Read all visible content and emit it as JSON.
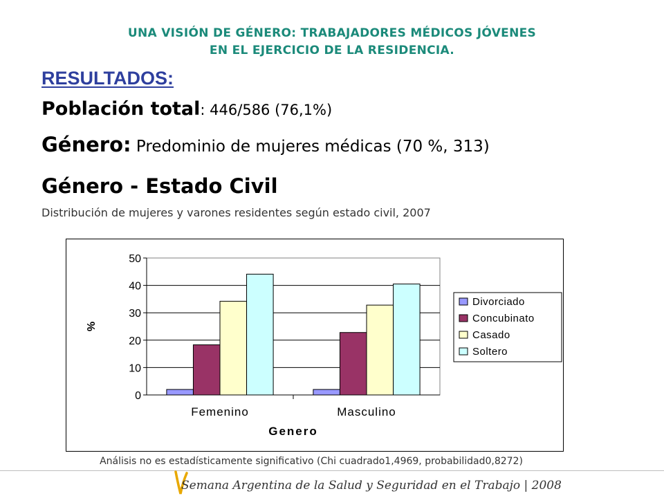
{
  "header": {
    "title_line1": "UNA VISIÓN DE GÉNERO: TRABAJADORES MÉDICOS JÓVENES",
    "title_line2": "EN EL EJERCICIO DE LA RESIDENCIA."
  },
  "results": {
    "heading": "RESULTADOS:",
    "population_label": "Población total",
    "population_value": ": 446/586 (76,1%)",
    "gender_label": "Género:",
    "gender_value": " Predominio de mujeres médicas (70 %, 313)",
    "section_title": "Género - Estado Civil",
    "chart_subtitle": "Distribución de mujeres y varones residentes según estado civil, 2007"
  },
  "chart_data": {
    "type": "bar",
    "categories": [
      "Femenino",
      "Masculino"
    ],
    "series": [
      {
        "name": "Divorciado",
        "color": "#9999ff",
        "values": [
          2,
          2
        ]
      },
      {
        "name": "Concubinato",
        "color": "#993366",
        "values": [
          18.3,
          22.8
        ]
      },
      {
        "name": "Casado",
        "color": "#ffffcc",
        "values": [
          34.2,
          32.8
        ]
      },
      {
        "name": "Soltero",
        "color": "#ccffff",
        "values": [
          44.1,
          40.5
        ]
      }
    ],
    "xlabel": "Genero",
    "ylabel": "%",
    "ylim": [
      0,
      50
    ],
    "yticks": [
      0,
      10,
      20,
      30,
      40,
      50
    ],
    "legend": "right"
  },
  "note": "Análisis no es estadísticamente significativo (Chi cuadrado1,4969, probabilidad0,8272)",
  "footer": {
    "text": "Semana Argentina de la Salud y Seguridad en el Trabajo | 2008"
  }
}
